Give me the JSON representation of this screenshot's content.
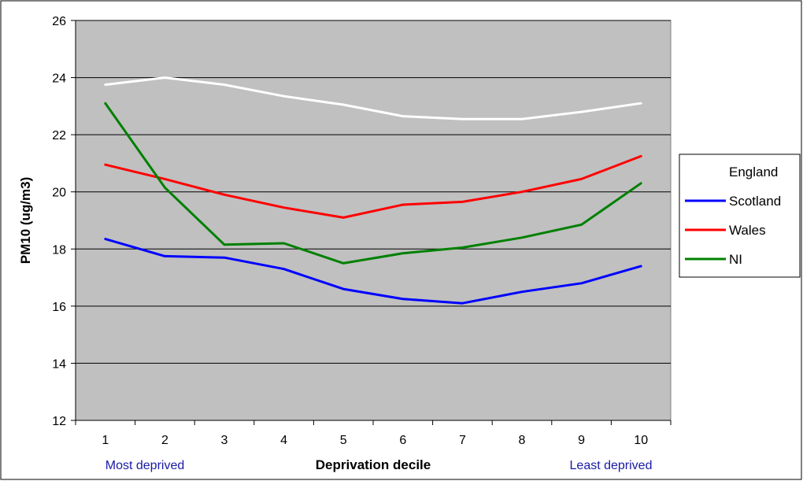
{
  "chart_data": {
    "type": "line",
    "title": "",
    "xlabel": "Deprivation decile",
    "ylabel": "PM10 (ug/m3)",
    "x": [
      1,
      2,
      3,
      4,
      5,
      6,
      7,
      8,
      9,
      10
    ],
    "x_tick_labels": [
      "1",
      "2",
      "3",
      "4",
      "5",
      "6",
      "7",
      "8",
      "9",
      "10"
    ],
    "ylim": [
      12,
      26
    ],
    "y_ticks": [
      12,
      14,
      16,
      18,
      20,
      22,
      24,
      26
    ],
    "y_tick_labels": [
      "12",
      "14",
      "16",
      "18",
      "20",
      "22",
      "24",
      "26"
    ],
    "grid": true,
    "legend_position": "right",
    "plot_background": "#c0c0c0",
    "annotations": {
      "left": "Most deprived",
      "right": "Least deprived",
      "color": "#1a1aa6"
    },
    "series": [
      {
        "name": "England",
        "color": "#ffffff",
        "values": [
          23.75,
          24.0,
          23.75,
          23.35,
          23.05,
          22.65,
          22.55,
          22.55,
          22.8,
          23.1
        ]
      },
      {
        "name": "Scotland",
        "color": "#0000ff",
        "values": [
          18.35,
          17.75,
          17.7,
          17.3,
          16.6,
          16.25,
          16.1,
          16.5,
          16.8,
          17.4
        ]
      },
      {
        "name": "Wales",
        "color": "#ff0000",
        "values": [
          20.95,
          20.45,
          19.9,
          19.45,
          19.1,
          19.55,
          19.65,
          20.0,
          20.45,
          21.25
        ]
      },
      {
        "name": "NI",
        "color": "#008000",
        "values": [
          23.1,
          20.15,
          18.15,
          18.2,
          17.5,
          17.85,
          18.05,
          18.4,
          18.85,
          20.3
        ]
      }
    ]
  }
}
